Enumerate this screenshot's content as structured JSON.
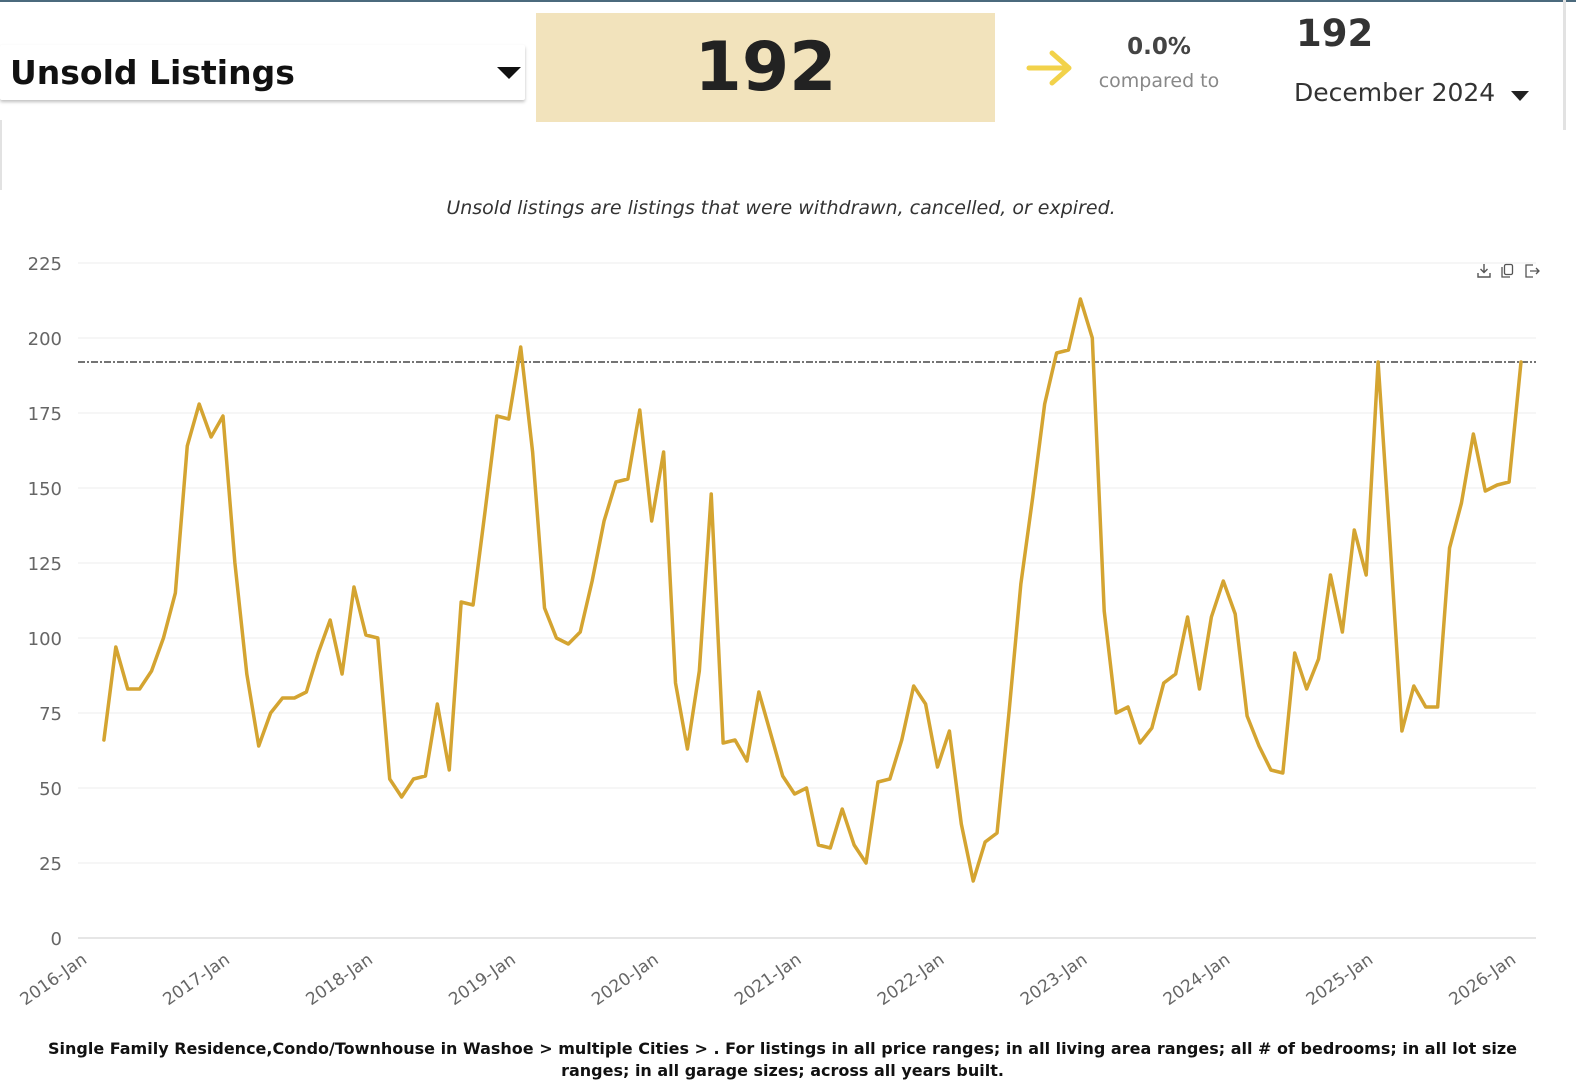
{
  "header": {
    "metric_label": "Unsold Listings",
    "current_value": "192",
    "change_pct": "0.0%",
    "compared_to_label": "compared to",
    "compare_value": "192",
    "compare_period": "December 2024"
  },
  "subtitle": "Unsold listings are listings that were withdrawn, cancelled, or expired.",
  "footnote": "Single Family Residence,Condo/Townhouse in Washoe > multiple Cities > . For listings in all price ranges; in all living area ranges; all # of bedrooms; in all lot size ranges; in all garage sizes; across all years built.",
  "toolbar": {
    "download_icon": "download-icon",
    "copy_icon": "copy-icon",
    "export_icon": "export-icon"
  },
  "colors": {
    "line": "#d4a431",
    "value_box": "#f2e3bc",
    "arrow": "#f2d24a",
    "reference_line": "#222222",
    "grid": "#eeeeee"
  },
  "chart_data": {
    "type": "line",
    "title": "",
    "xlabel": "",
    "ylabel": "",
    "ylim": [
      0,
      225
    ],
    "yticks": [
      0,
      25,
      50,
      75,
      100,
      125,
      150,
      175,
      200,
      225
    ],
    "xlim": [
      0,
      120
    ],
    "grid": true,
    "legend": "none",
    "x_tick_labels": [
      "2016-Jan",
      "2017-Jan",
      "2018-Jan",
      "2019-Jan",
      "2020-Jan",
      "2021-Jan",
      "2022-Jan",
      "2023-Jan",
      "2024-Jan",
      "2025-Jan",
      "2026-Jan"
    ],
    "x_tick_positions": [
      0,
      12,
      24,
      36,
      48,
      60,
      72,
      84,
      96,
      108,
      120
    ],
    "reference_line": 192,
    "series": [
      {
        "name": "Unsold Listings",
        "x": [
          1,
          2,
          3,
          4,
          5,
          6,
          7,
          8,
          9,
          10,
          11,
          12,
          13,
          14,
          15,
          16,
          17,
          18,
          19,
          20,
          21,
          22,
          23,
          24,
          25,
          26,
          27,
          28,
          29,
          30,
          31,
          32,
          33,
          34,
          35,
          36,
          37,
          38,
          39,
          40,
          41,
          42,
          43,
          44,
          45,
          46,
          47,
          48,
          49,
          50,
          51,
          52,
          53,
          54,
          55,
          56,
          57,
          58,
          59,
          60,
          61,
          62,
          63,
          64,
          65,
          66,
          67,
          68,
          69,
          70,
          71,
          72,
          73,
          74,
          75,
          76,
          77,
          78,
          79,
          80,
          81,
          82,
          83,
          84,
          85,
          86,
          87,
          88,
          89,
          90,
          91,
          92,
          93,
          94,
          95,
          96,
          97,
          98,
          99,
          100,
          101,
          102,
          103,
          104,
          105,
          106,
          107,
          108,
          109,
          110,
          111,
          112,
          113,
          114,
          115,
          116,
          117,
          118,
          119,
          120
        ],
        "values": [
          66,
          97,
          83,
          83,
          89,
          100,
          115,
          164,
          178,
          167,
          174,
          125,
          88,
          64,
          75,
          80,
          80,
          82,
          95,
          106,
          88,
          117,
          101,
          100,
          53,
          47,
          53,
          54,
          78,
          56,
          112,
          111,
          142,
          174,
          173,
          197,
          162,
          110,
          100,
          98,
          102,
          119,
          139,
          152,
          153,
          176,
          139,
          162,
          85,
          63,
          89,
          148,
          65,
          66,
          59,
          82,
          68,
          54,
          48,
          50,
          31,
          30,
          43,
          31,
          25,
          52,
          53,
          66,
          84,
          78,
          57,
          69,
          38,
          19,
          32,
          35,
          75,
          118,
          147,
          178,
          195,
          196,
          213,
          200,
          109,
          75,
          77,
          65,
          70,
          85,
          88,
          107,
          83,
          107,
          119,
          108,
          74,
          64,
          56,
          55,
          95,
          83,
          93,
          121,
          102,
          136,
          121,
          192,
          132,
          69,
          84,
          77,
          77,
          130,
          145,
          168,
          149,
          151,
          152,
          192
        ]
      }
    ]
  }
}
